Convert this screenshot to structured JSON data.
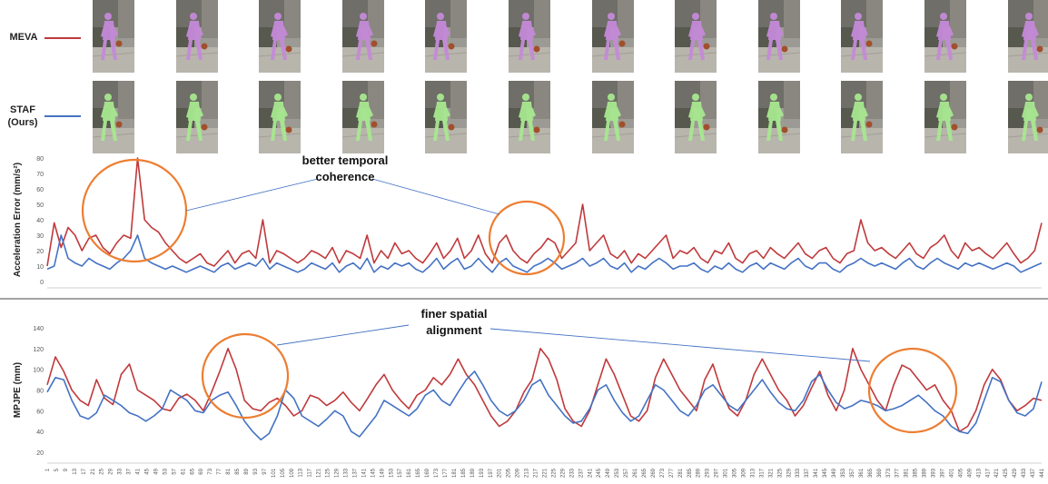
{
  "legend": {
    "meva": {
      "label": "MEVA",
      "color": "#c0393b"
    },
    "staf": {
      "label_line1": "STAF",
      "label_line2": "(Ours)",
      "color": "#4472c4"
    }
  },
  "frames": {
    "count_per_row": 12,
    "meva_body_color": "#c58ad8",
    "staf_body_color": "#a8e890"
  },
  "chart_data": [
    {
      "type": "line",
      "ylabel": "Acceleration Error   (mm/s²)",
      "ylim": [
        0,
        80
      ],
      "yticks": [
        0,
        10,
        20,
        30,
        40,
        50,
        60,
        70,
        80
      ],
      "series": [
        {
          "name": "MEVA",
          "color": "#c0393b",
          "values": [
            10,
            38,
            22,
            35,
            30,
            20,
            28,
            30,
            22,
            18,
            25,
            30,
            28,
            80,
            40,
            35,
            32,
            25,
            20,
            15,
            12,
            15,
            18,
            12,
            10,
            15,
            20,
            12,
            18,
            20,
            15,
            40,
            12,
            20,
            18,
            15,
            12,
            15,
            20,
            18,
            15,
            22,
            12,
            20,
            18,
            15,
            30,
            12,
            20,
            15,
            25,
            18,
            20,
            15,
            12,
            18,
            25,
            15,
            20,
            28,
            15,
            20,
            30,
            18,
            12,
            25,
            30,
            20,
            15,
            12,
            18,
            22,
            28,
            25,
            15,
            20,
            25,
            50,
            20,
            25,
            30,
            18,
            15,
            20,
            12,
            18,
            15,
            20,
            25,
            30,
            15,
            20,
            18,
            22,
            15,
            12,
            20,
            18,
            25,
            15,
            12,
            18,
            20,
            15,
            22,
            18,
            15,
            20,
            25,
            18,
            15,
            20,
            22,
            15,
            12,
            18,
            20,
            40,
            25,
            20,
            22,
            18,
            15,
            20,
            25,
            18,
            15,
            22,
            25,
            30,
            20,
            15,
            25,
            20,
            22,
            18,
            15,
            20,
            25,
            18,
            12,
            15,
            20,
            38
          ]
        },
        {
          "name": "STAF",
          "color": "#4472c4",
          "values": [
            8,
            10,
            30,
            15,
            12,
            10,
            15,
            12,
            10,
            8,
            12,
            15,
            20,
            30,
            15,
            12,
            10,
            8,
            10,
            8,
            6,
            8,
            10,
            8,
            6,
            10,
            12,
            8,
            10,
            12,
            10,
            15,
            8,
            12,
            10,
            8,
            6,
            8,
            12,
            10,
            8,
            12,
            6,
            10,
            12,
            8,
            15,
            6,
            10,
            8,
            12,
            10,
            12,
            8,
            6,
            10,
            15,
            8,
            12,
            15,
            8,
            10,
            15,
            10,
            6,
            12,
            15,
            10,
            8,
            6,
            10,
            12,
            15,
            12,
            8,
            10,
            12,
            15,
            10,
            12,
            15,
            10,
            8,
            12,
            6,
            10,
            8,
            12,
            15,
            12,
            8,
            10,
            10,
            12,
            8,
            6,
            10,
            8,
            12,
            8,
            6,
            10,
            12,
            8,
            12,
            10,
            8,
            12,
            15,
            10,
            8,
            12,
            12,
            8,
            6,
            10,
            12,
            15,
            12,
            10,
            12,
            10,
            8,
            12,
            15,
            10,
            8,
            12,
            15,
            12,
            10,
            8,
            12,
            10,
            12,
            10,
            8,
            10,
            12,
            10,
            6,
            8,
            10,
            12
          ]
        }
      ]
    },
    {
      "type": "line",
      "ylabel": "MPJPE   (mm)",
      "ylim": [
        20,
        140
      ],
      "yticks": [
        20,
        40,
        60,
        80,
        100,
        120,
        140
      ],
      "series": [
        {
          "name": "MEVA",
          "color": "#c0393b",
          "values": [
            85,
            112,
            98,
            80,
            70,
            65,
            90,
            72,
            66,
            95,
            105,
            80,
            75,
            70,
            62,
            60,
            72,
            76,
            70,
            60,
            78,
            98,
            120,
            100,
            70,
            62,
            60,
            68,
            72,
            65,
            55,
            60,
            75,
            72,
            65,
            70,
            78,
            68,
            60,
            72,
            85,
            95,
            80,
            70,
            62,
            75,
            80,
            92,
            85,
            95,
            110,
            95,
            85,
            70,
            55,
            45,
            50,
            60,
            78,
            90,
            120,
            110,
            90,
            62,
            50,
            45,
            60,
            85,
            110,
            95,
            75,
            55,
            50,
            60,
            92,
            110,
            95,
            80,
            70,
            60,
            90,
            105,
            80,
            62,
            55,
            70,
            95,
            110,
            95,
            80,
            70,
            55,
            65,
            82,
            98,
            75,
            60,
            80,
            120,
            100,
            85,
            70,
            60,
            85,
            104,
            100,
            90,
            80,
            85,
            70,
            60,
            40,
            45,
            60,
            85,
            100,
            90,
            70,
            60,
            65,
            72,
            70
          ]
        },
        {
          "name": "STAF",
          "color": "#4472c4",
          "values": [
            78,
            92,
            90,
            70,
            55,
            52,
            58,
            75,
            70,
            65,
            58,
            55,
            50,
            55,
            62,
            80,
            75,
            70,
            60,
            58,
            70,
            75,
            78,
            65,
            50,
            40,
            32,
            38,
            55,
            80,
            72,
            55,
            50,
            45,
            52,
            60,
            55,
            40,
            35,
            45,
            55,
            70,
            65,
            60,
            55,
            62,
            75,
            80,
            70,
            65,
            78,
            90,
            98,
            85,
            70,
            60,
            55,
            60,
            70,
            85,
            90,
            75,
            65,
            55,
            48,
            50,
            62,
            80,
            85,
            70,
            58,
            50,
            55,
            70,
            85,
            80,
            70,
            60,
            55,
            65,
            80,
            85,
            75,
            65,
            60,
            70,
            80,
            90,
            78,
            68,
            62,
            60,
            70,
            88,
            95,
            80,
            68,
            62,
            65,
            70,
            68,
            65,
            60,
            62,
            65,
            70,
            75,
            68,
            60,
            55,
            45,
            40,
            38,
            48,
            70,
            92,
            88,
            70,
            58,
            55,
            62,
            88
          ]
        }
      ]
    }
  ],
  "xaxis": {
    "tick_labels": [
      "1",
      "5",
      "9",
      "13",
      "17",
      "21",
      "25",
      "29",
      "33",
      "37",
      "41",
      "45",
      "49",
      "53",
      "57",
      "61",
      "65",
      "69",
      "73",
      "77",
      "81",
      "85",
      "89",
      "93",
      "97",
      "101",
      "105",
      "109",
      "113",
      "117",
      "121",
      "125",
      "129",
      "133",
      "137",
      "141",
      "145",
      "149",
      "153",
      "157",
      "161",
      "165",
      "169",
      "173",
      "177",
      "181",
      "185",
      "189",
      "193",
      "197",
      "201",
      "205",
      "209",
      "213",
      "217",
      "221",
      "225",
      "229",
      "233",
      "237",
      "241",
      "245",
      "249",
      "253",
      "257",
      "261",
      "265",
      "269",
      "273",
      "277",
      "281",
      "285",
      "289",
      "293",
      "297",
      "301",
      "305",
      "309",
      "313",
      "317",
      "321",
      "325",
      "329",
      "333",
      "337",
      "341",
      "345",
      "349",
      "353",
      "357",
      "361",
      "365",
      "369",
      "373",
      "377",
      "381",
      "385",
      "389",
      "393",
      "397",
      "401",
      "405",
      "409",
      "413",
      "417",
      "421",
      "425",
      "429",
      "433",
      "437",
      "441"
    ]
  },
  "annotations": {
    "top": {
      "line1": "better temporal",
      "line2": "coherence"
    },
    "bottom": {
      "line1": "finer spatial",
      "line2": "alignment"
    },
    "circle_color": "#ed7d31",
    "connector_color": "#4472c4"
  }
}
